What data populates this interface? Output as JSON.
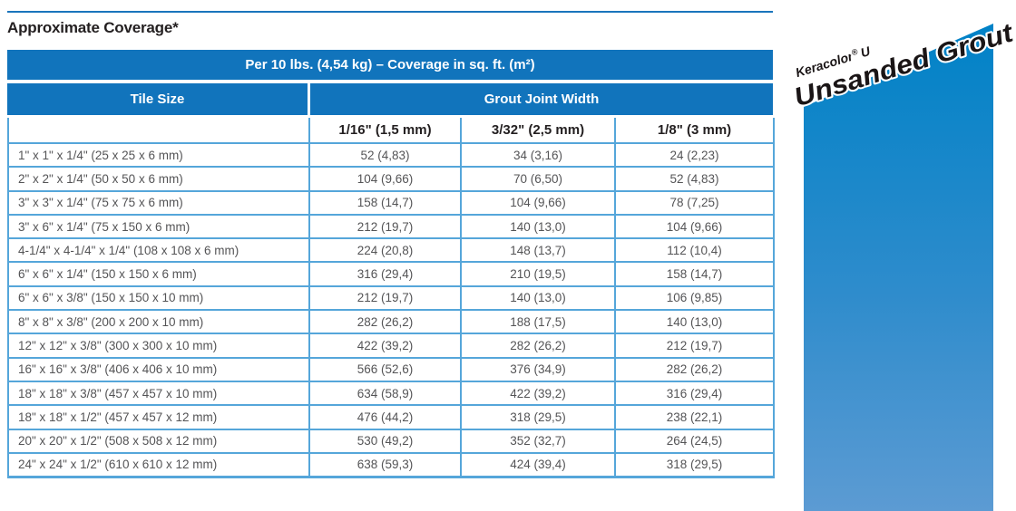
{
  "page": {
    "title": "Approximate Coverage*"
  },
  "brand": {
    "name": "Keracolor",
    "reg": "®",
    "grade": "U",
    "product_line": "Unsanded Grout",
    "panel_top_color": "#0082c7",
    "panel_bottom_color": "#5c9bd3"
  },
  "table": {
    "header": "Per 10 lbs. (4,54 kg) – Coverage in sq. ft. (m²)",
    "col1_header": "Tile Size",
    "group_header": "Grout Joint Width",
    "sub_headers": [
      "1/16\" (1,5 mm)",
      "3/32\" (2,5 mm)",
      "1/8\" (3 mm)"
    ],
    "accent_color": "#1174bc",
    "grid_color": "#55a6da",
    "rows": [
      {
        "tile_size": "1\" x 1\" x 1/4\" (25 x 25 x 6 mm)",
        "values": [
          "52 (4,83)",
          "34 (3,16)",
          "24 (2,23)"
        ]
      },
      {
        "tile_size": "2\" x 2\" x 1/4\" (50 x 50 x 6 mm)",
        "values": [
          "104 (9,66)",
          "70 (6,50)",
          "52 (4,83)"
        ]
      },
      {
        "tile_size": "3\" x 3\" x 1/4\" (75 x 75 x 6 mm)",
        "values": [
          "158 (14,7)",
          "104 (9,66)",
          "78 (7,25)"
        ]
      },
      {
        "tile_size": "3\" x 6\" x 1/4\" (75 x 150 x 6 mm)",
        "values": [
          "212 (19,7)",
          "140 (13,0)",
          "104 (9,66)"
        ]
      },
      {
        "tile_size": "4-1/4\" x 4-1/4\" x 1/4\" (108 x 108 x 6 mm)",
        "values": [
          "224 (20,8)",
          "148 (13,7)",
          "112 (10,4)"
        ]
      },
      {
        "tile_size": "6\" x 6\" x 1/4\" (150 x 150 x 6 mm)",
        "values": [
          "316 (29,4)",
          "210 (19,5)",
          "158 (14,7)"
        ]
      },
      {
        "tile_size": "6\" x 6\" x 3/8\" (150 x 150 x 10 mm)",
        "values": [
          "212 (19,7)",
          "140 (13,0)",
          "106 (9,85)"
        ]
      },
      {
        "tile_size": "8\" x 8\" x 3/8\" (200 x 200 x 10 mm)",
        "values": [
          "282 (26,2)",
          "188 (17,5)",
          "140 (13,0)"
        ]
      },
      {
        "tile_size": "12\" x 12\" x 3/8\" (300 x 300 x 10 mm)",
        "values": [
          "422 (39,2)",
          "282 (26,2)",
          "212 (19,7)"
        ]
      },
      {
        "tile_size": "16\" x 16\" x 3/8\" (406 x 406 x 10 mm)",
        "values": [
          "566 (52,6)",
          "376 (34,9)",
          "282 (26,2)"
        ]
      },
      {
        "tile_size": "18\" x 18\" x 3/8\" (457 x 457 x 10 mm)",
        "values": [
          "634 (58,9)",
          "422 (39,2)",
          "316 (29,4)"
        ]
      },
      {
        "tile_size": "18\" x 18\" x 1/2\" (457 x 457 x 12 mm)",
        "values": [
          "476 (44,2)",
          "318 (29,5)",
          "238 (22,1)"
        ]
      },
      {
        "tile_size": "20\" x 20\" x 1/2\" (508 x 508 x 12 mm)",
        "values": [
          "530 (49,2)",
          "352 (32,7)",
          "264 (24,5)"
        ]
      },
      {
        "tile_size": "24\" x 24\" x 1/2\" (610 x 610 x 12 mm)",
        "values": [
          "638 (59,3)",
          "424 (39,4)",
          "318 (29,5)"
        ]
      }
    ]
  }
}
